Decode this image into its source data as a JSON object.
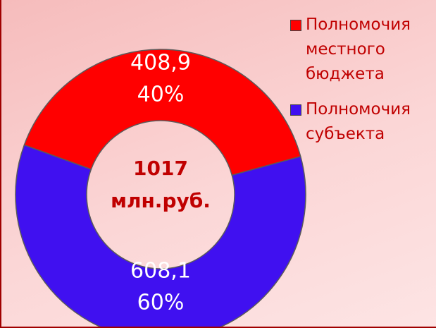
{
  "chart_data": {
    "type": "donut",
    "categories": [
      "Полномочия местного бюджета",
      "Полномочия субъекта"
    ],
    "values": [
      408.9,
      608.1
    ],
    "value_labels": [
      "408,9",
      "608,1"
    ],
    "percent_values": [
      40,
      60
    ],
    "percent_labels": [
      "40%",
      "60%"
    ],
    "colors": [
      "#ff0000",
      "#4010f0"
    ],
    "total": 1017,
    "total_unit": "млн.руб.",
    "legend": "top-right"
  }
}
